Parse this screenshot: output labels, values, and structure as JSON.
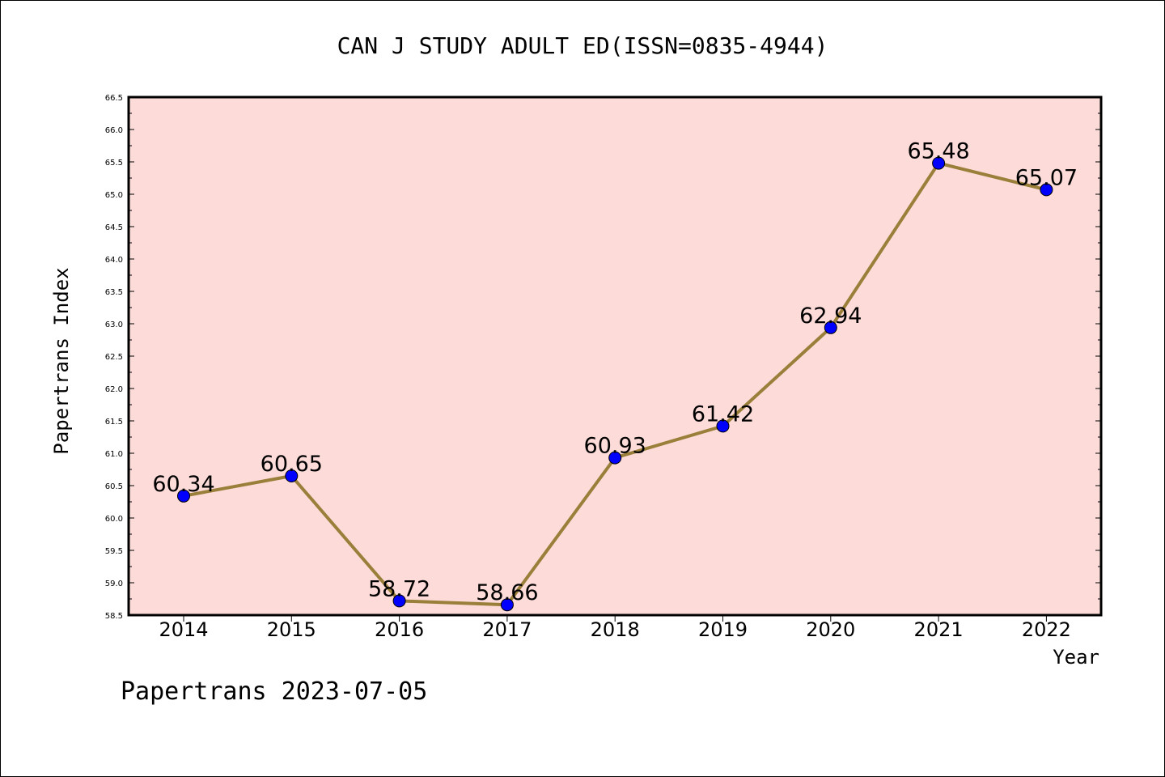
{
  "chart_data": {
    "type": "line",
    "title": "CAN J STUDY ADULT ED(ISSN=0835-4944)",
    "xlabel": "Year",
    "ylabel": "Papertrans Index",
    "x": [
      "2014",
      "2015",
      "2016",
      "2017",
      "2018",
      "2019",
      "2020",
      "2021",
      "2022"
    ],
    "values": [
      60.34,
      60.65,
      58.72,
      58.66,
      60.93,
      61.42,
      62.94,
      65.48,
      65.07
    ],
    "data_labels": [
      "60.34",
      "60.65",
      "58.72",
      "58.66",
      "60.93",
      "61.42",
      "62.94",
      "65.48",
      "65.07"
    ],
    "ylim": [
      58.5,
      66.5
    ],
    "yticks": [
      "58.5",
      "59.0",
      "59.5",
      "60.0",
      "60.5",
      "61.0",
      "61.5",
      "62.0",
      "62.5",
      "63.0",
      "63.5",
      "64.0",
      "64.5",
      "65.0",
      "65.5",
      "66.0",
      "66.5"
    ],
    "grid": false,
    "colors": {
      "plot_background": "#fddbd8",
      "line": "#9a7f3a",
      "marker": "#0000ff"
    }
  },
  "footer": "Papertrans 2023-07-05"
}
